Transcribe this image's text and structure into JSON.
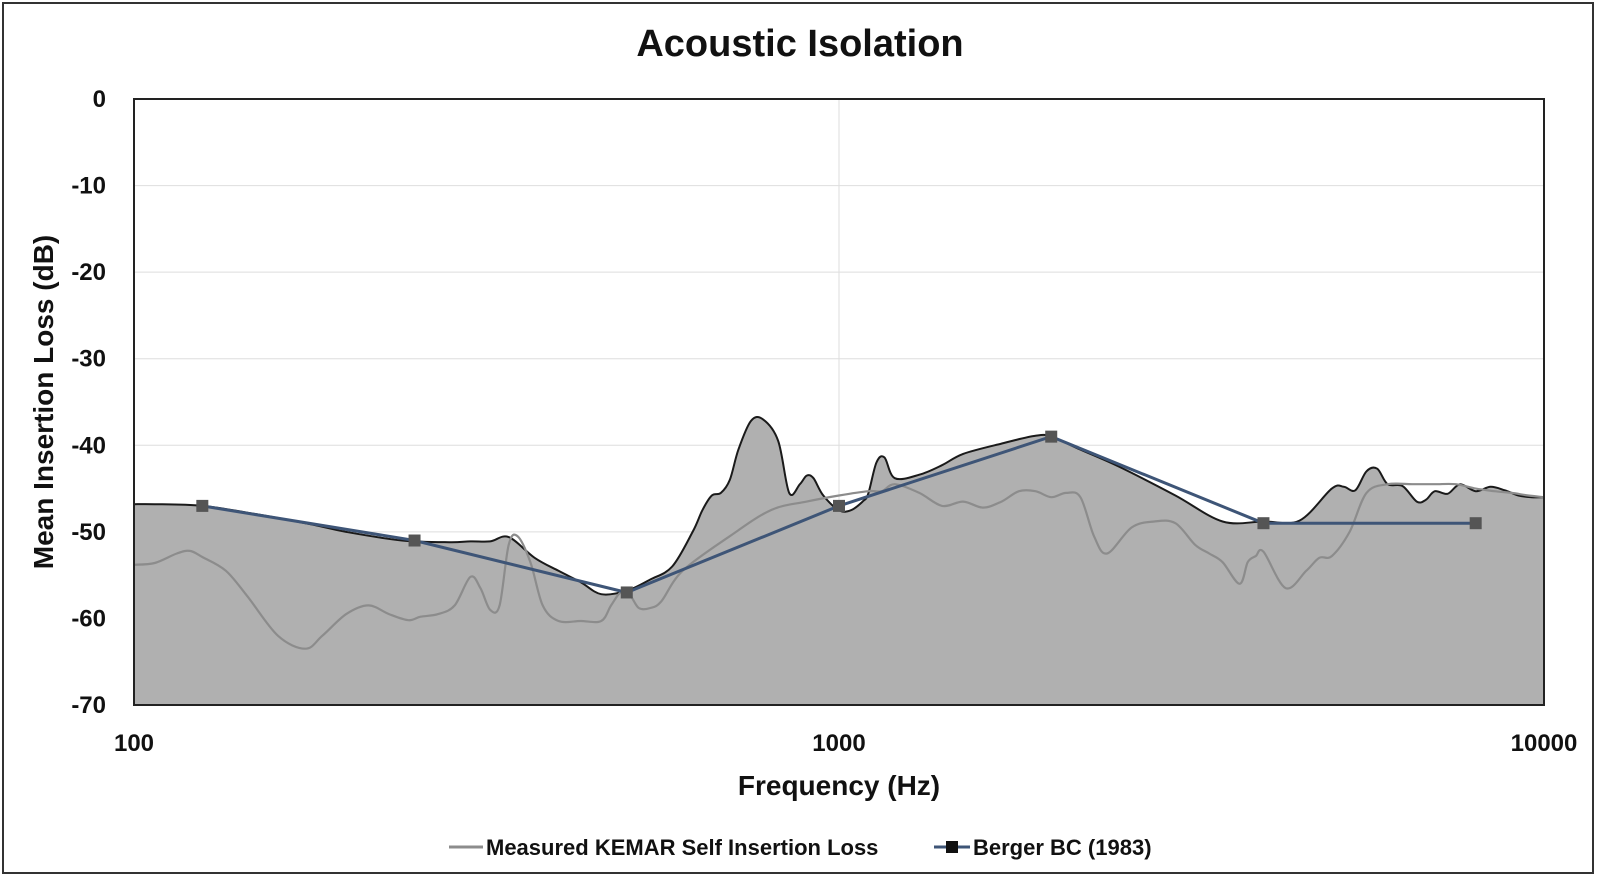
{
  "chart_data": {
    "type": "line",
    "title": "Acoustic Isolation",
    "xlabel": "Frequency (Hz)",
    "ylabel": "Mean Insertion Loss (dB)",
    "x_scale": "log",
    "xlim": [
      100,
      10000
    ],
    "ylim": [
      -70,
      0
    ],
    "x_ticks": [
      100,
      1000,
      10000
    ],
    "x_tick_labels": [
      "100",
      "1000",
      "10000"
    ],
    "y_ticks": [
      0,
      -10,
      -20,
      -30,
      -40,
      -50,
      -60,
      -70
    ],
    "y_tick_labels": [
      "0",
      "-10",
      "-20",
      "-30",
      "-40",
      "-50",
      "-60",
      "-70"
    ],
    "grid": true,
    "legend_position": "bottom",
    "colors": {
      "fill": "#b0b0b0",
      "envelope": "#1a1a1a",
      "measured": "#8c8c8c",
      "berger": "#3e5577",
      "marker": "#555555",
      "grid": "#dedede"
    },
    "area": {
      "x": [
        100,
        107,
        125,
        150,
        180,
        200,
        240,
        280,
        300,
        320,
        340,
        370,
        400,
        430,
        460,
        500,
        540,
        580,
        620,
        640,
        660,
        680,
        700,
        720,
        750,
        780,
        820,
        850,
        880,
        900,
        920,
        950,
        1000,
        1040,
        1080,
        1100,
        1130,
        1160,
        1200,
        1300,
        1400,
        1500,
        1700,
        1900,
        2000,
        2200,
        2500,
        3000,
        3500,
        4000,
        4500,
        5000,
        5200,
        5400,
        5600,
        5800,
        6000,
        6300,
        6600,
        6800,
        7000,
        7300,
        7600,
        8000,
        8400,
        8800,
        9200,
        9600,
        10000
      ],
      "y": [
        -46.8,
        -46.8,
        -47,
        -48,
        -49.2,
        -50,
        -51,
        -51.2,
        -51.1,
        -51.1,
        -50.6,
        -53,
        -54.5,
        -55.8,
        -57.2,
        -56.8,
        -55.5,
        -54,
        -50,
        -47.5,
        -45.8,
        -45.5,
        -44,
        -40.5,
        -37.2,
        -37,
        -39.5,
        -45.5,
        -44.5,
        -43.5,
        -43.8,
        -45.8,
        -47.5,
        -47.5,
        -46.5,
        -45.6,
        -42,
        -41.4,
        -43.8,
        -43.4,
        -42.3,
        -41,
        -39.8,
        -38.9,
        -39,
        -40.5,
        -42.5,
        -45.8,
        -48.8,
        -48.8,
        -48.7,
        -45,
        -44.8,
        -45.2,
        -43,
        -42.7,
        -44.5,
        -44.7,
        -46.5,
        -46.3,
        -45.3,
        -45.6,
        -44.5,
        -45.3,
        -44.8,
        -45.2,
        -45.8,
        -46,
        -46
      ]
    },
    "series": [
      {
        "name": "Measured KEMAR Self Insertion Loss",
        "x": [
          100,
          107,
          115,
          120,
          125,
          135,
          145,
          160,
          175,
          185,
          200,
          215,
          230,
          245,
          255,
          270,
          285,
          300,
          310,
          320,
          330,
          340,
          350,
          365,
          380,
          400,
          430,
          460,
          475,
          490,
          505,
          520,
          540,
          560,
          600,
          700,
          800,
          900,
          1000,
          1100,
          1150,
          1200,
          1300,
          1400,
          1500,
          1600,
          1700,
          1800,
          1900,
          2000,
          2100,
          2200,
          2300,
          2400,
          2600,
          2800,
          3000,
          3200,
          3350,
          3500,
          3700,
          3800,
          3900,
          4000,
          4300,
          4600,
          4800,
          5000,
          5300,
          5600,
          6000,
          6500,
          7000,
          7500,
          8000,
          8500,
          9000,
          9500,
          10000
        ],
        "y": [
          -53.8,
          -53.6,
          -52.5,
          -52.2,
          -52.9,
          -54.5,
          -57.5,
          -62,
          -63.5,
          -62,
          -59.5,
          -58.5,
          -59.5,
          -60.2,
          -59.8,
          -59.5,
          -58.5,
          -55.2,
          -56.5,
          -59,
          -58.5,
          -51.5,
          -50.5,
          -53.5,
          -58.5,
          -60.3,
          -60.3,
          -60.3,
          -58.5,
          -57,
          -57.3,
          -58.8,
          -58.8,
          -58,
          -54.5,
          -50.5,
          -47.5,
          -46.5,
          -45.8,
          -45.3,
          -45.3,
          -44.5,
          -45.5,
          -47,
          -46.5,
          -47.2,
          -46.5,
          -45.3,
          -45.3,
          -46,
          -45.5,
          -46,
          -50.5,
          -52.5,
          -49.5,
          -48.8,
          -49,
          -51.5,
          -52.5,
          -53.5,
          -56,
          -53.5,
          -52.8,
          -52.3,
          -56.5,
          -54.5,
          -53,
          -52.8,
          -50,
          -45.5,
          -44.5,
          -44.5,
          -44.5,
          -44.5,
          -45,
          -45.3,
          -45.5,
          -45.8,
          -46
        ]
      },
      {
        "name": "Berger BC (1983)",
        "x": [
          125,
          250,
          500,
          1000,
          2000,
          4000,
          8000
        ],
        "y": [
          -47,
          -51,
          -57,
          -47,
          -39,
          -49,
          -49
        ]
      }
    ]
  }
}
